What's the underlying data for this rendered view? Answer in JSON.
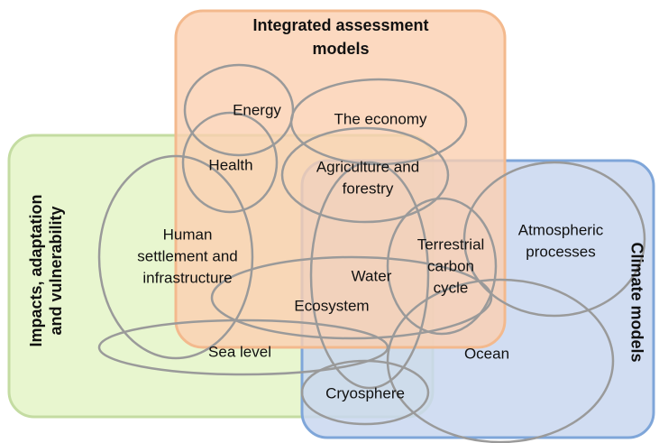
{
  "groups": [
    {
      "name": [
        "Integrated assessment",
        "models"
      ]
    },
    {
      "name": [
        "Impacts, adaptation",
        "and vulnerability"
      ]
    },
    {
      "name": [
        "Climate models"
      ]
    }
  ],
  "nodes": [
    {
      "label": [
        "Energy"
      ]
    },
    {
      "label": [
        "The economy"
      ]
    },
    {
      "label": [
        "Health"
      ]
    },
    {
      "label": [
        "Agriculture and",
        "forestry"
      ]
    },
    {
      "label": [
        "Human",
        "settlement and",
        "infrastructure"
      ]
    },
    {
      "label": [
        "Water"
      ]
    },
    {
      "label": [
        "Terrestrial",
        "carbon",
        "cycle"
      ]
    },
    {
      "label": [
        "Atmospheric",
        "processes"
      ]
    },
    {
      "label": [
        "Ocean"
      ]
    },
    {
      "label": [
        "Ecosystem"
      ]
    },
    {
      "label": [
        "Sea level"
      ]
    },
    {
      "label": [
        "Cryosphere"
      ]
    }
  ]
}
